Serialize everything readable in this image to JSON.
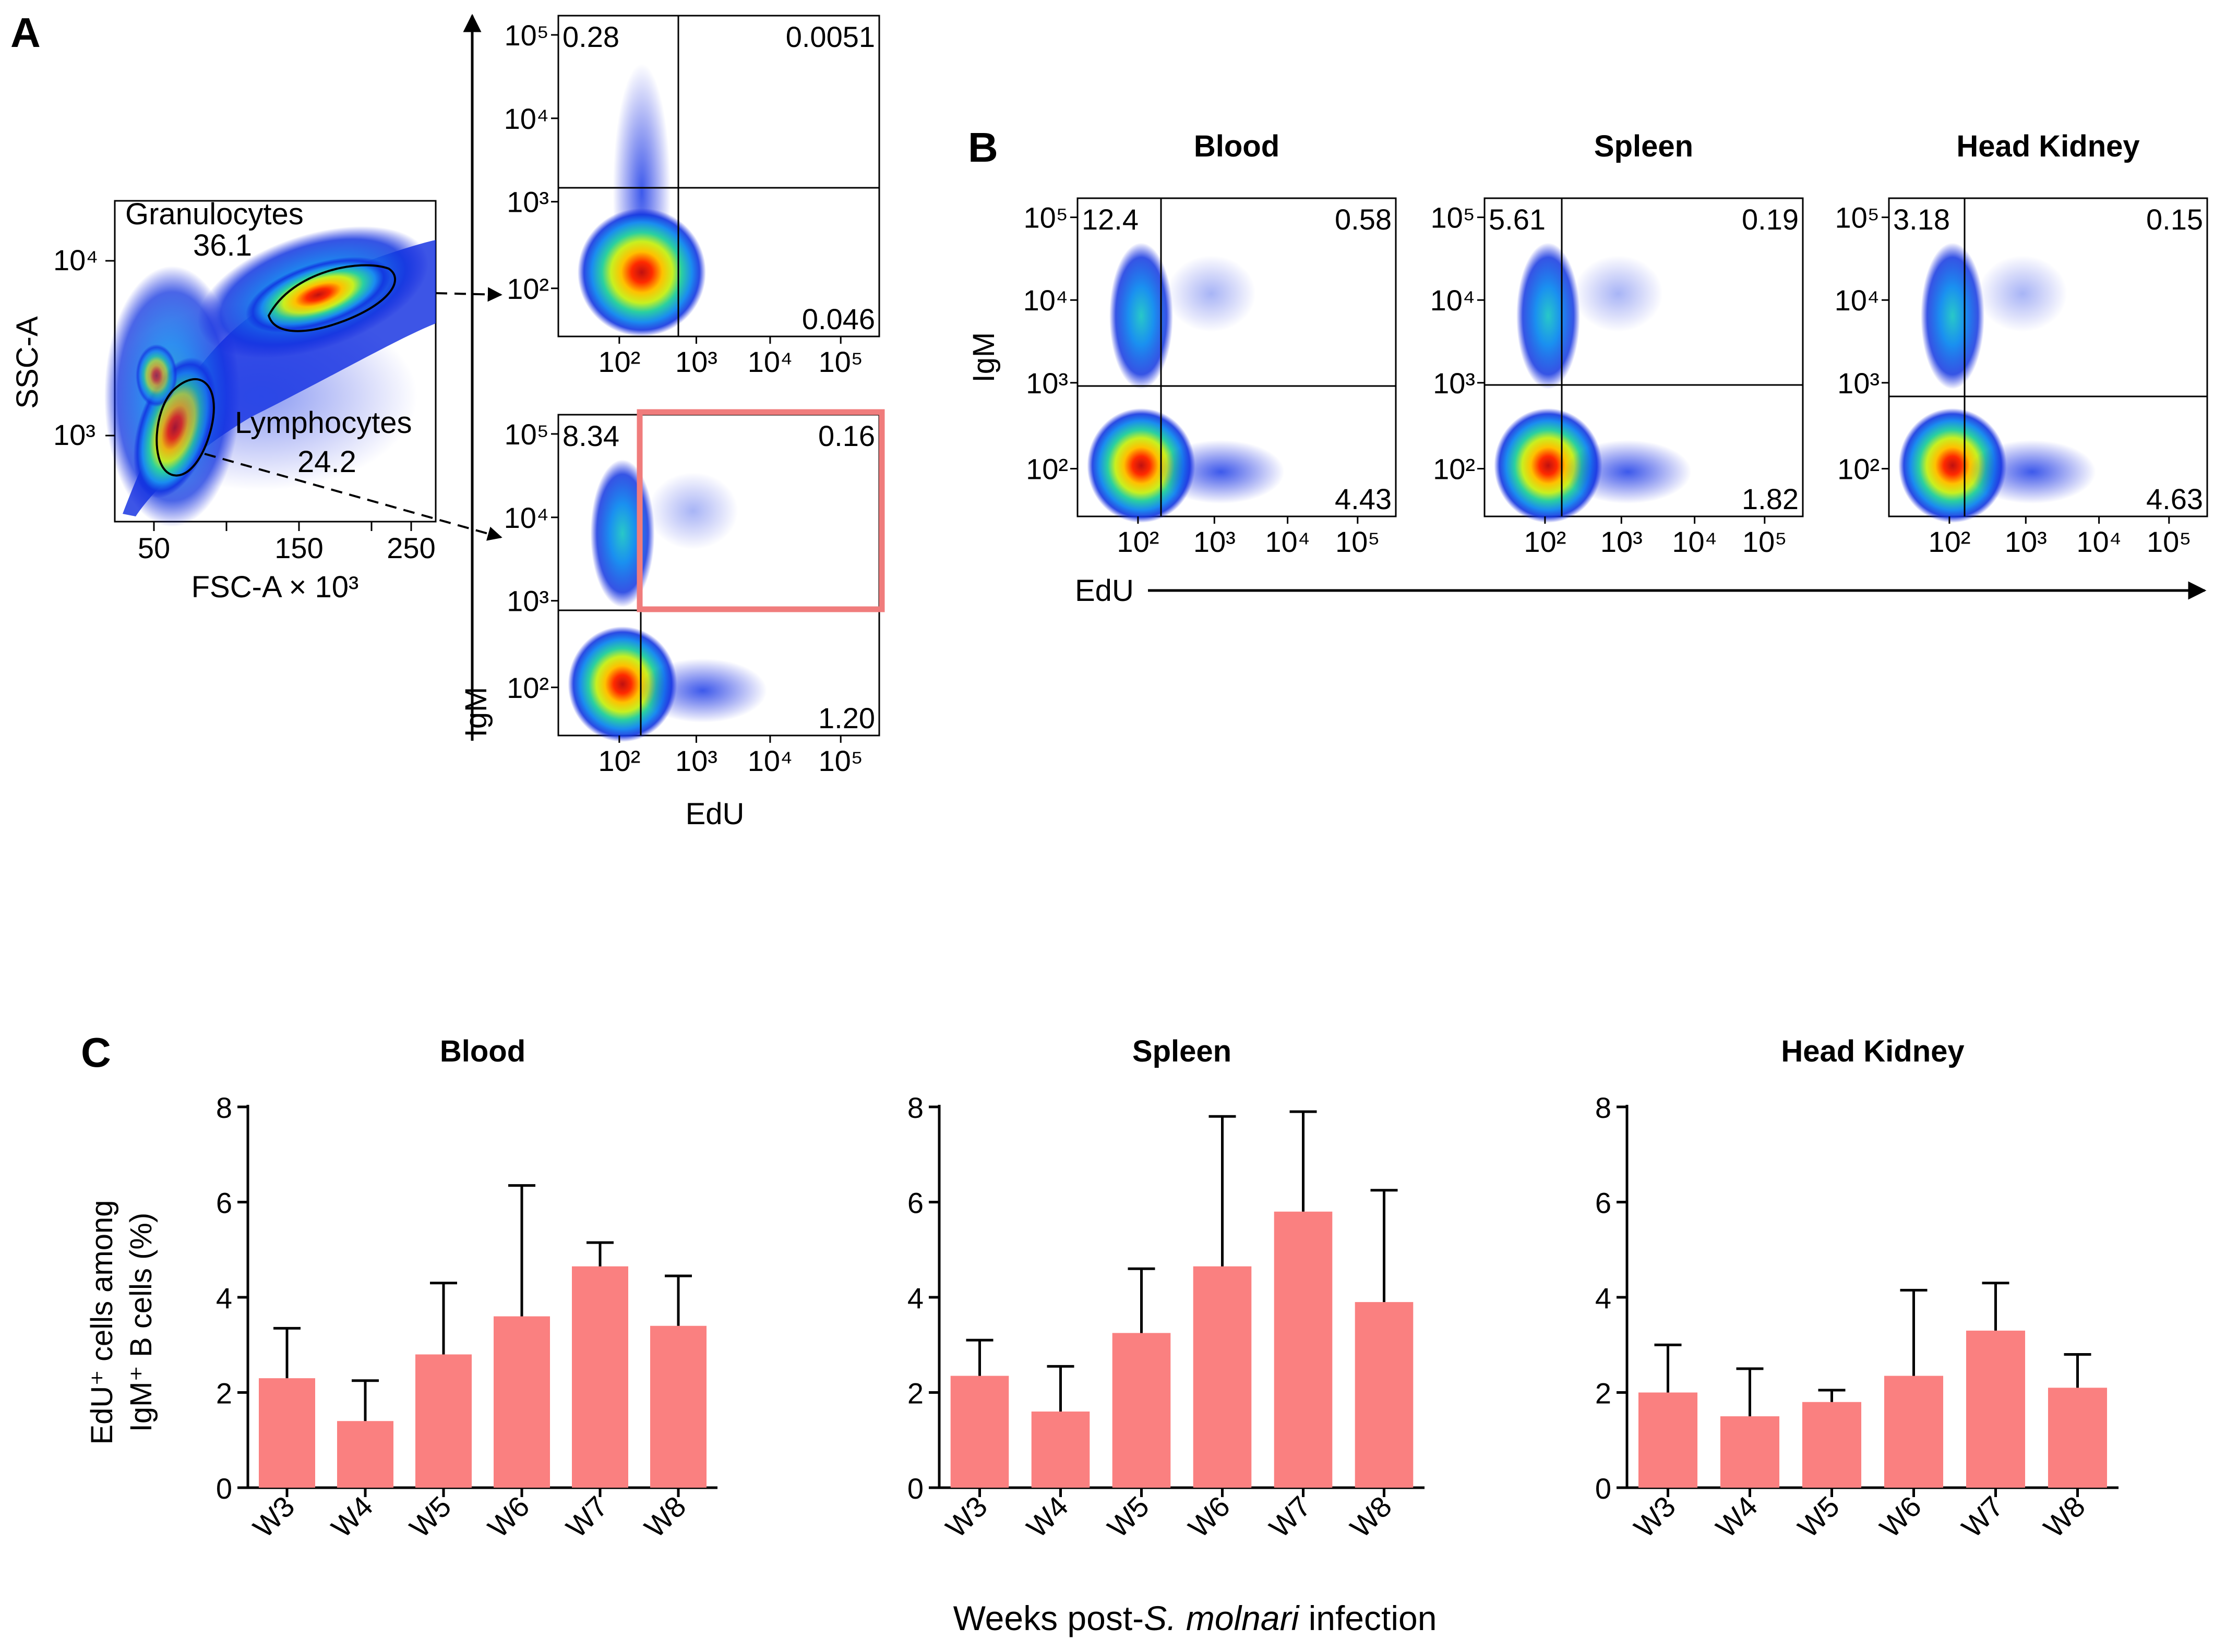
{
  "panels": {
    "A": "A",
    "B": "B",
    "C": "C"
  },
  "panel_a": {
    "scatter": {
      "xlabel": "FSC-A × 10³",
      "ylabel": "SSC-A",
      "xticks": [
        "50",
        "100",
        "150",
        "200",
        "250"
      ],
      "xtick_labels": [
        "50",
        "150",
        "250"
      ],
      "yticks": [
        "10³",
        "10⁴"
      ],
      "gates": [
        {
          "name": "Granulocytes",
          "value": "36.1"
        },
        {
          "name": "Lymphocytes",
          "value": "24.2"
        }
      ]
    },
    "flow_top": {
      "quadrants": {
        "ul": "0.28",
        "ur": "0.0051",
        "lr": "0.046"
      }
    },
    "flow_bottom": {
      "quadrants": {
        "ul": "8.34",
        "ur": "0.16",
        "lr": "1.20"
      }
    },
    "axis_y_label": "IgM",
    "axis_x_label": "EdU",
    "log_ticks": [
      "10²",
      "10³",
      "10⁴",
      "10⁵"
    ]
  },
  "panel_b": {
    "axis_y_label": "IgM",
    "axis_x_label": "EdU",
    "plots": [
      {
        "title": "Blood",
        "quadrants": {
          "ul": "12.4",
          "ur": "0.58",
          "lr": "4.43"
        }
      },
      {
        "title": "Spleen",
        "quadrants": {
          "ul": "5.61",
          "ur": "0.19",
          "lr": "1.82"
        }
      },
      {
        "title": "Head Kidney",
        "quadrants": {
          "ul": "3.18",
          "ur": "0.15",
          "lr": "4.63"
        }
      }
    ]
  },
  "panel_c": {
    "ylabel_line1": "EdU⁺ cells among",
    "ylabel_line2": "IgM⁺ B cells (%)",
    "xlabel_prefix": "Weeks post-",
    "xlabel_italic": "S. molnari",
    "xlabel_suffix": " infection"
  },
  "colors": {
    "bar": "#FA8080",
    "gate_box": "#F07C7C"
  },
  "chart_data": [
    {
      "type": "bar",
      "title": "Blood",
      "categories": [
        "W3",
        "W4",
        "W5",
        "W6",
        "W7",
        "W8"
      ],
      "values": [
        2.3,
        1.4,
        2.8,
        3.6,
        4.65,
        3.4
      ],
      "error_upper": [
        3.35,
        2.25,
        4.3,
        6.35,
        5.15,
        4.45
      ],
      "ylim": [
        0,
        8
      ],
      "yticks": [
        0,
        2,
        4,
        6,
        8
      ]
    },
    {
      "type": "bar",
      "title": "Spleen",
      "categories": [
        "W3",
        "W4",
        "W5",
        "W6",
        "W7",
        "W8"
      ],
      "values": [
        2.35,
        1.6,
        3.25,
        4.65,
        5.8,
        3.9
      ],
      "error_upper": [
        3.1,
        2.55,
        4.6,
        7.8,
        7.9,
        6.25
      ],
      "ylim": [
        0,
        8
      ],
      "yticks": [
        0,
        2,
        4,
        6,
        8
      ]
    },
    {
      "type": "bar",
      "title": "Head Kidney",
      "categories": [
        "W3",
        "W4",
        "W5",
        "W6",
        "W7",
        "W8"
      ],
      "values": [
        2.0,
        1.5,
        1.8,
        2.35,
        3.3,
        2.1
      ],
      "error_upper": [
        3.0,
        2.5,
        2.05,
        4.15,
        4.3,
        2.8
      ],
      "ylim": [
        0,
        8
      ],
      "yticks": [
        0,
        2,
        4,
        6,
        8
      ]
    }
  ]
}
